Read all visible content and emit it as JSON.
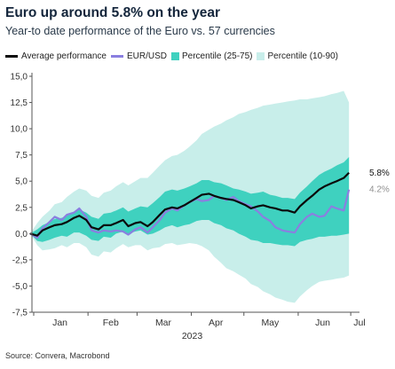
{
  "header": {
    "title": "Euro up around 5.8% on the year",
    "subtitle": "Year-to date performance of the Euro vs. 57 currencies"
  },
  "legend": {
    "avg": "Average performance",
    "eur": "EUR/USD",
    "p2575": "Percentile (25-75)",
    "p1090": "Percentile (10-90)"
  },
  "footer": {
    "source": "Source: Convera, Macrobond"
  },
  "colors": {
    "avg": "#0a0a0a",
    "eur": "#8a7fe0",
    "p2575": "#3fd1bf",
    "p1090": "#c8eeea",
    "end_avg_label": "#111111",
    "end_eur_label": "#8f8f8f"
  },
  "chart_data": {
    "type": "area",
    "title": "Euro up around 5.8% on the year",
    "subtitle": "Year-to date performance of the Euro vs. 57 currencies",
    "xlabel": "2023",
    "ylabel": "",
    "x_ticks": [
      "Jan",
      "Feb",
      "Mar",
      "Apr",
      "May",
      "Jun",
      "Jul"
    ],
    "y_ticks": [
      "15,0",
      "12,5",
      "10,0",
      "7,5",
      "5,0",
      "2,5",
      "0,0",
      "-2,5",
      "-5,0",
      "-7,5"
    ],
    "ylim": [
      -7.5,
      15.0
    ],
    "xlim": [
      "2022-12-31",
      "2023-07-06"
    ],
    "grid": false,
    "legend_position": "top",
    "x": [
      "2022-12-30",
      "2023-01-03",
      "2023-01-06",
      "2023-01-10",
      "2023-01-13",
      "2023-01-17",
      "2023-01-20",
      "2023-01-24",
      "2023-01-27",
      "2023-01-31",
      "2023-02-03",
      "2023-02-07",
      "2023-02-10",
      "2023-02-14",
      "2023-02-17",
      "2023-02-21",
      "2023-02-24",
      "2023-02-28",
      "2023-03-03",
      "2023-03-07",
      "2023-03-10",
      "2023-03-14",
      "2023-03-17",
      "2023-03-21",
      "2023-03-24",
      "2023-03-28",
      "2023-03-31",
      "2023-04-04",
      "2023-04-07",
      "2023-04-11",
      "2023-04-14",
      "2023-04-18",
      "2023-04-21",
      "2023-04-25",
      "2023-04-28",
      "2023-05-02",
      "2023-05-05",
      "2023-05-09",
      "2023-05-12",
      "2023-05-16",
      "2023-05-19",
      "2023-05-23",
      "2023-05-26",
      "2023-05-30",
      "2023-06-02",
      "2023-06-06",
      "2023-06-09",
      "2023-06-13",
      "2023-06-16",
      "2023-06-20",
      "2023-06-23",
      "2023-06-27",
      "2023-06-30"
    ],
    "series": [
      {
        "name": "Average performance",
        "values": [
          0.0,
          -0.2,
          0.3,
          0.6,
          0.8,
          0.9,
          1.1,
          1.5,
          1.7,
          1.3,
          0.6,
          0.4,
          0.8,
          0.8,
          1.0,
          1.3,
          0.7,
          1.0,
          1.1,
          0.7,
          1.1,
          1.8,
          2.3,
          2.5,
          2.4,
          2.7,
          3.0,
          3.4,
          3.7,
          3.8,
          3.6,
          3.4,
          3.3,
          3.2,
          3.0,
          2.7,
          2.4,
          2.6,
          2.7,
          2.5,
          2.4,
          2.2,
          2.2,
          2.0,
          2.6,
          3.2,
          3.6,
          4.2,
          4.5,
          4.8,
          5.0,
          5.3,
          5.8
        ]
      },
      {
        "name": "EUR/USD",
        "values": [
          0.0,
          -0.4,
          0.5,
          1.1,
          1.6,
          1.3,
          1.8,
          2.0,
          2.4,
          1.6,
          0.3,
          0.1,
          0.3,
          0.2,
          0.3,
          0.2,
          -0.1,
          0.4,
          0.6,
          0.1,
          0.6,
          1.3,
          2.0,
          2.4,
          2.2,
          2.7,
          3.0,
          3.3,
          3.1,
          3.2,
          3.6,
          3.4,
          3.2,
          3.5,
          3.1,
          2.8,
          2.6,
          2.1,
          1.6,
          1.2,
          0.6,
          0.3,
          0.2,
          0.1,
          0.9,
          1.6,
          1.9,
          1.6,
          1.7,
          2.6,
          2.4,
          2.2,
          4.2
        ]
      },
      {
        "name": "Percentile (25-75) low",
        "values": [
          0.0,
          -0.7,
          -0.8,
          -0.6,
          -0.4,
          -0.2,
          -0.3,
          0.1,
          0.1,
          -0.2,
          -0.6,
          -0.7,
          -0.3,
          -0.4,
          0.0,
          0.2,
          0.0,
          0.2,
          0.3,
          -0.1,
          0.0,
          0.3,
          0.6,
          0.8,
          0.6,
          0.8,
          0.9,
          1.2,
          1.3,
          1.3,
          1.0,
          0.8,
          0.5,
          0.3,
          0.0,
          -0.3,
          -0.6,
          -0.7,
          -0.9,
          -0.9,
          -1.0,
          -1.1,
          -1.1,
          -1.2,
          -0.8,
          -0.6,
          -0.5,
          -0.3,
          -0.3,
          -0.2,
          -0.2,
          -0.1,
          0.0
        ]
      },
      {
        "name": "Percentile (25-75) high",
        "values": [
          0.0,
          0.4,
          0.8,
          1.1,
          1.4,
          1.5,
          1.7,
          2.1,
          2.3,
          2.0,
          1.6,
          1.4,
          1.9,
          2.0,
          2.2,
          2.5,
          2.1,
          2.4,
          2.6,
          2.5,
          2.9,
          3.5,
          4.0,
          4.2,
          4.1,
          4.3,
          4.5,
          4.8,
          5.1,
          5.1,
          4.9,
          4.8,
          4.6,
          4.3,
          4.2,
          4.0,
          3.8,
          3.9,
          4.0,
          3.7,
          3.6,
          3.4,
          3.4,
          3.3,
          3.9,
          4.5,
          5.0,
          5.6,
          5.9,
          6.2,
          6.5,
          6.8,
          7.3
        ]
      },
      {
        "name": "Percentile (10-90) low",
        "values": [
          0.0,
          -1.1,
          -1.6,
          -1.5,
          -1.4,
          -1.1,
          -1.3,
          -0.9,
          -0.9,
          -1.3,
          -2.0,
          -2.2,
          -1.7,
          -1.8,
          -1.4,
          -1.0,
          -1.3,
          -1.1,
          -1.1,
          -1.6,
          -1.4,
          -1.3,
          -1.0,
          -0.9,
          -1.1,
          -1.0,
          -0.9,
          -1.0,
          -1.2,
          -1.6,
          -2.2,
          -2.8,
          -3.3,
          -3.6,
          -3.9,
          -4.3,
          -4.8,
          -5.1,
          -5.5,
          -5.8,
          -6.1,
          -6.3,
          -6.5,
          -6.6,
          -6.0,
          -5.4,
          -5.0,
          -4.6,
          -4.5,
          -4.4,
          -4.3,
          -4.2,
          -4.0
        ]
      },
      {
        "name": "Percentile (10-90) high",
        "values": [
          0.0,
          1.0,
          1.6,
          2.2,
          2.8,
          3.0,
          3.5,
          4.0,
          4.3,
          4.1,
          3.6,
          3.4,
          3.9,
          4.1,
          4.5,
          4.9,
          4.6,
          5.0,
          5.3,
          5.3,
          5.8,
          6.5,
          7.0,
          7.4,
          7.5,
          7.9,
          8.3,
          8.9,
          9.5,
          9.9,
          10.2,
          10.5,
          10.8,
          11.1,
          11.4,
          11.6,
          11.8,
          12.0,
          12.2,
          12.3,
          12.4,
          12.5,
          12.6,
          12.7,
          12.8,
          12.8,
          12.9,
          13.0,
          13.1,
          13.3,
          13.4,
          13.6,
          12.5
        ]
      }
    ],
    "end_labels": [
      {
        "series": "Average performance",
        "text": "5.8%"
      },
      {
        "series": "EUR/USD",
        "text": "4.2%"
      }
    ],
    "source": "Source: Convera, Macrobond"
  }
}
